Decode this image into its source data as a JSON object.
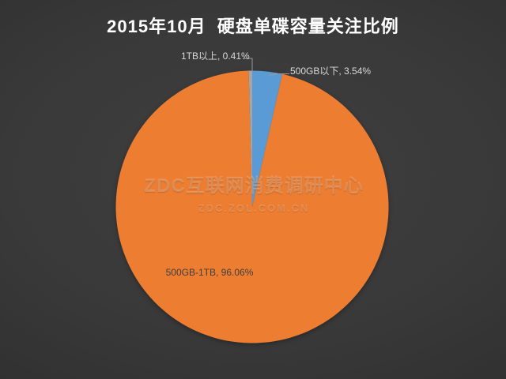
{
  "title": "2015年10月  硬盘单碟容量关注比例",
  "watermark": {
    "line1": "ZDC互联网消费调研中心",
    "line2": "ZDC.ZOL.COM.CN"
  },
  "chart_data": {
    "type": "pie",
    "title": "2015年10月  硬盘单碟容量关注比例",
    "categories": [
      "500GB以下",
      "500GB-1TB",
      "1TB以上"
    ],
    "values": [
      3.54,
      96.06,
      0.41
    ],
    "unit": "%",
    "colors": [
      "#5B9BD5",
      "#ED7D31",
      "#A5A5A5"
    ],
    "start_angle_deg": 0,
    "direction": "clockwise",
    "legend_position": "none",
    "data_labels": {
      "below_500gb": "500GB以下, 3.54%",
      "between_500gb_1tb": "500GB-1TB, 96.06%",
      "above_1tb": "1TB以上, 0.41%"
    },
    "label_line_color": "#9a9a9a",
    "background": "dark-gray-radial-gradient"
  }
}
